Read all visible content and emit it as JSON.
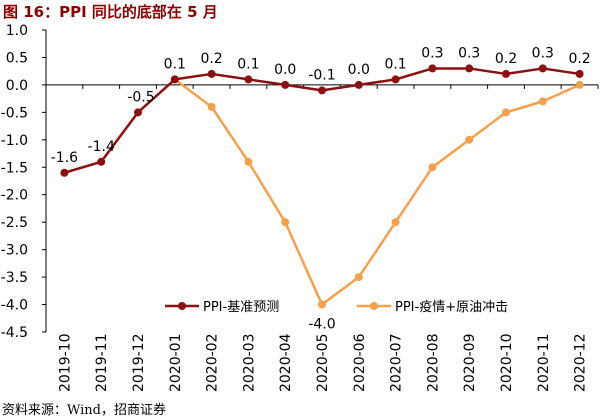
{
  "header": {
    "title": "图 16：PPI 同比的底部在 5 月"
  },
  "footer": {
    "source": "资料来源：Wind，招商证券"
  },
  "colors": {
    "series1": "#8b1010",
    "series2": "#f5a04a",
    "axis": "#000000"
  },
  "chart_data": {
    "type": "line",
    "title": "图 16：PPI 同比的底部在 5 月",
    "xlabel": "",
    "ylabel": "",
    "x": [
      "2019-10",
      "2019-11",
      "2019-12",
      "2020-01",
      "2020-02",
      "2020-03",
      "2020-04",
      "2020-05",
      "2020-06",
      "2020-07",
      "2020-08",
      "2020-09",
      "2020-10",
      "2020-11",
      "2020-12"
    ],
    "ylim": [
      -4.5,
      1.0
    ],
    "yticks": [
      "1.0",
      "0.5",
      "0.0",
      "-0.5",
      "-1.0",
      "-1.5",
      "-2.0",
      "-2.5",
      "-3.0",
      "-3.5",
      "-4.0",
      "-4.5"
    ],
    "grid": false,
    "legend_position": "bottom-right",
    "series": [
      {
        "name": "PPI-基准预测",
        "color": "#8b1010",
        "values": [
          -1.6,
          -1.4,
          -0.5,
          0.1,
          0.2,
          0.1,
          0.0,
          -0.1,
          0.0,
          0.1,
          0.3,
          0.3,
          0.2,
          0.3,
          0.2
        ],
        "labels": [
          "-1.6",
          "-1.4",
          "-0.5",
          "0.1",
          "0.2",
          "0.1",
          "0.0",
          "-0.1",
          "0.0",
          "0.1",
          "0.3",
          "0.3",
          "0.2",
          "0.3",
          "0.2"
        ]
      },
      {
        "name": "PPI-疫情+原油冲击",
        "color": "#f5a04a",
        "values": [
          null,
          null,
          null,
          0.1,
          -0.4,
          -1.4,
          -2.5,
          -4.0,
          -3.5,
          -2.5,
          -1.5,
          -1.0,
          -0.5,
          -0.3,
          0.0
        ],
        "min_label": "-4.0"
      }
    ]
  }
}
